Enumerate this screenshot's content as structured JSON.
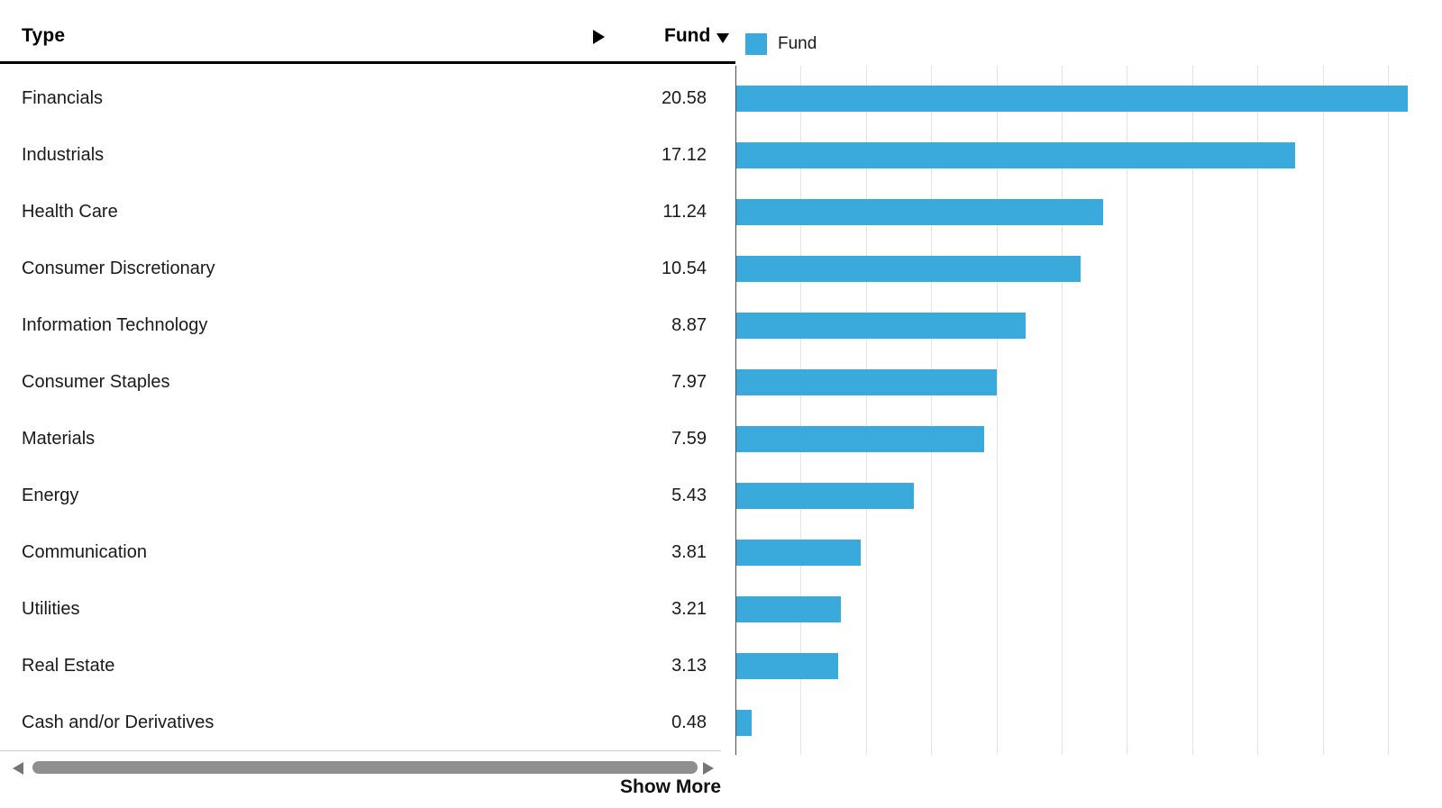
{
  "header": {
    "type_label": "Type",
    "fund_label": "Fund"
  },
  "legend": {
    "label": "Fund",
    "swatch_color": "#3aa9dc"
  },
  "table": {
    "rows": [
      {
        "type": "Financials",
        "fund": "20.58"
      },
      {
        "type": "Industrials",
        "fund": "17.12"
      },
      {
        "type": "Health Care",
        "fund": "11.24"
      },
      {
        "type": "Consumer Discretionary",
        "fund": "10.54"
      },
      {
        "type": "Information Technology",
        "fund": "8.87"
      },
      {
        "type": "Consumer Staples",
        "fund": "7.97"
      },
      {
        "type": "Materials",
        "fund": "7.59"
      },
      {
        "type": "Energy",
        "fund": "5.43"
      },
      {
        "type": "Communication",
        "fund": "3.81"
      },
      {
        "type": "Utilities",
        "fund": "3.21"
      },
      {
        "type": "Real Estate",
        "fund": "3.13"
      },
      {
        "type": "Cash and/or Derivatives",
        "fund": "0.48"
      }
    ]
  },
  "chart_data": {
    "type": "bar",
    "orientation": "horizontal",
    "title": "",
    "xlabel": "",
    "ylabel": "Type",
    "categories": [
      "Financials",
      "Industrials",
      "Health Care",
      "Consumer Discretionary",
      "Information Technology",
      "Consumer Staples",
      "Materials",
      "Energy",
      "Communication",
      "Utilities",
      "Real Estate",
      "Cash and/or Derivatives"
    ],
    "series": [
      {
        "name": "Fund",
        "values": [
          20.58,
          17.12,
          11.24,
          10.54,
          8.87,
          7.97,
          7.59,
          5.43,
          3.81,
          3.21,
          3.13,
          0.48
        ]
      }
    ],
    "xlim": [
      0,
      21.6
    ],
    "gridline_interval": 2,
    "grid": true,
    "bar_color": "#3aa9dc",
    "legend_position": "top"
  },
  "footer": {
    "show_more_label": "Show More"
  }
}
